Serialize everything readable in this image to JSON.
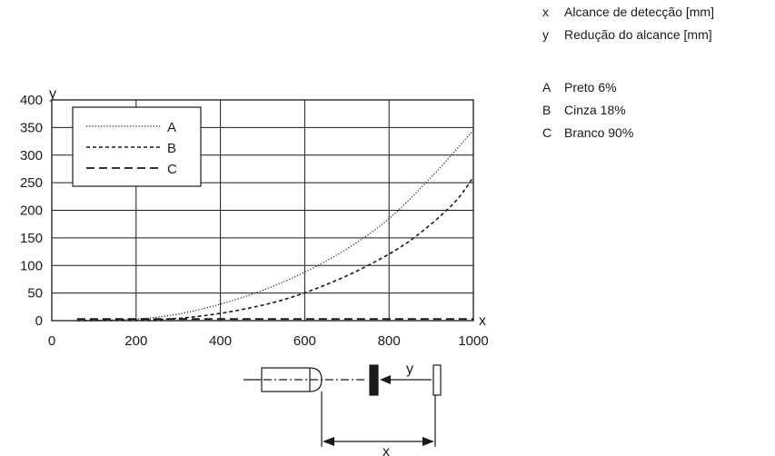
{
  "key": {
    "axes": [
      {
        "symbol": "x",
        "text": "Alcance de detecção [mm]"
      },
      {
        "symbol": "y",
        "text": "Redução do alcance [mm]"
      }
    ],
    "series": [
      {
        "symbol": "A",
        "text": "Preto 6%"
      },
      {
        "symbol": "B",
        "text": "Cinza 18%"
      },
      {
        "symbol": "C",
        "text": "Branco 90%"
      }
    ]
  },
  "diagram": {
    "x_label": "x",
    "y_label": "y"
  },
  "chart_data": {
    "type": "line",
    "title": "",
    "xlabel": "x",
    "ylabel": "y",
    "xlim": [
      0,
      1000
    ],
    "ylim": [
      0,
      400
    ],
    "xticks": [
      0,
      200,
      400,
      600,
      800,
      1000
    ],
    "yticks": [
      0,
      50,
      100,
      150,
      200,
      250,
      300,
      350,
      400
    ],
    "grid": true,
    "legend_position": "top-left",
    "series": [
      {
        "name": "A",
        "style": "dotted",
        "x": [
          60,
          200,
          300,
          400,
          500,
          600,
          700,
          800,
          900,
          1000
        ],
        "y": [
          0,
          3,
          12,
          30,
          55,
          88,
          130,
          185,
          260,
          345
        ]
      },
      {
        "name": "B",
        "style": "dashed",
        "x": [
          60,
          250,
          350,
          450,
          550,
          650,
          750,
          850,
          950,
          1000
        ],
        "y": [
          0,
          2,
          8,
          20,
          38,
          65,
          100,
          145,
          210,
          260
        ]
      },
      {
        "name": "C",
        "style": "long-dashed",
        "x": [
          60,
          1000
        ],
        "y": [
          3,
          3
        ]
      }
    ]
  }
}
